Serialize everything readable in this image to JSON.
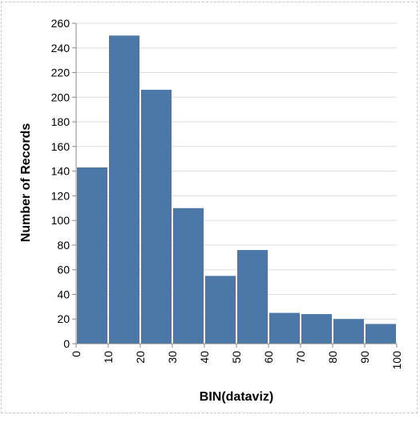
{
  "chart_data": {
    "type": "bar",
    "title": "",
    "xlabel": "BIN(dataviz)",
    "ylabel": "Number of Records",
    "bin_edges": [
      0,
      10,
      20,
      30,
      40,
      50,
      60,
      70,
      80,
      90,
      100
    ],
    "values": [
      143,
      250,
      206,
      110,
      55,
      76,
      25,
      24,
      20,
      16
    ],
    "xlim": [
      0,
      100
    ],
    "ylim": [
      0,
      260
    ],
    "x_ticks": [
      0,
      10,
      20,
      30,
      40,
      50,
      60,
      70,
      80,
      90,
      100
    ],
    "y_ticks": [
      0,
      20,
      40,
      60,
      80,
      100,
      120,
      140,
      160,
      180,
      200,
      220,
      240,
      260
    ],
    "grid": true,
    "bar_color": "#4c78a8",
    "grid_color": "#dddddd",
    "axis_color": "#888888"
  }
}
